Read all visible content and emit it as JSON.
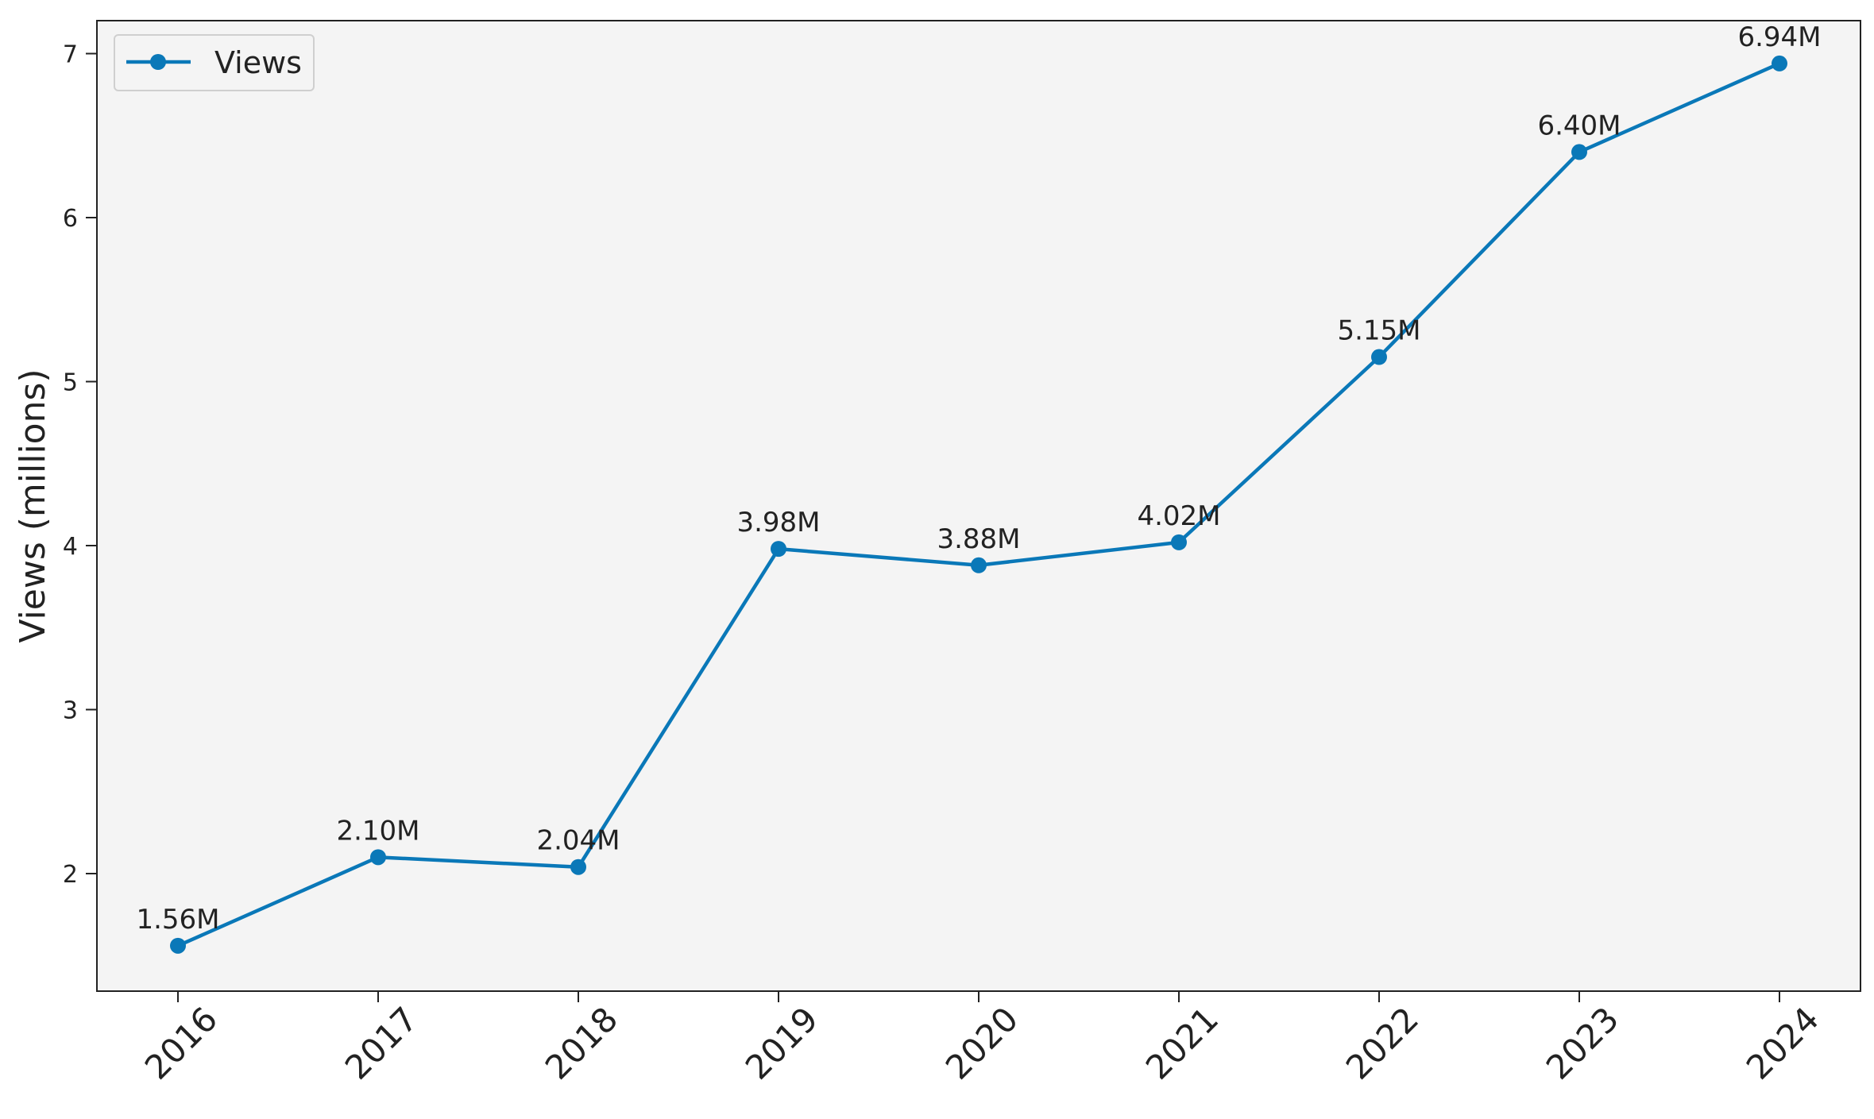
{
  "chart_data": {
    "type": "line",
    "title": "",
    "xlabel": "",
    "ylabel": "Views (millions)",
    "x": [
      "2016",
      "2017",
      "2018",
      "2019",
      "2020",
      "2021",
      "2022",
      "2023",
      "2024"
    ],
    "series": [
      {
        "name": "Views",
        "values": [
          1.56,
          2.1,
          2.04,
          3.98,
          3.88,
          4.02,
          5.15,
          6.4,
          6.94
        ],
        "labels": [
          "1.56M",
          "2.10M",
          "2.04M",
          "3.98M",
          "3.88M",
          "4.02M",
          "5.15M",
          "6.40M",
          "6.94M"
        ],
        "color": "#0a78b8"
      }
    ],
    "yticks": [
      "2",
      "3",
      "4",
      "5",
      "6",
      "7"
    ],
    "ylim": [
      1.2,
      7.2
    ],
    "grid": false,
    "legend_position": "top-left",
    "plot_background": "#f4f4f4"
  }
}
